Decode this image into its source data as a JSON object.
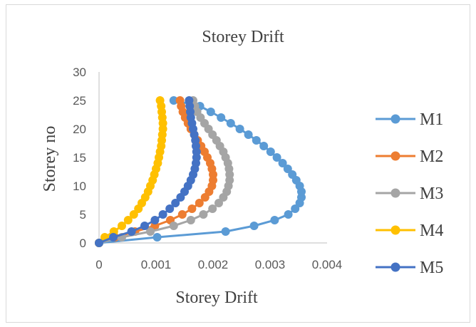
{
  "chart_data": {
    "type": "scatter",
    "title": "Storey Drift",
    "xlabel": "Storey Drift",
    "ylabel": "Storey no",
    "xlim": [
      0,
      0.004
    ],
    "ylim": [
      0,
      30
    ],
    "xticks": [
      "0",
      "0.001",
      "0.002",
      "0.003",
      "0.004"
    ],
    "yticks": [
      "0",
      "5",
      "10",
      "15",
      "20",
      "25",
      "30"
    ],
    "grid": false,
    "legend_position": "right",
    "series": [
      {
        "name": "M1",
        "color": "#5B9BD5",
        "x": [
          0,
          0.00102,
          0.00222,
          0.00272,
          0.00308,
          0.00332,
          0.00344,
          0.00352,
          0.00355,
          0.00355,
          0.00352,
          0.00346,
          0.00339,
          0.00331,
          0.00322,
          0.00312,
          0.00301,
          0.00289,
          0.00276,
          0.00262,
          0.00247,
          0.00231,
          0.00214,
          0.00196,
          0.00177,
          0.00131
        ],
        "y": [
          0,
          1,
          2,
          3,
          4,
          5,
          6,
          7,
          8,
          9,
          10,
          11,
          12,
          13,
          14,
          15,
          16,
          17,
          18,
          19,
          20,
          21,
          22,
          23,
          24,
          25
        ]
      },
      {
        "name": "M2",
        "color": "#ED7D31",
        "x": [
          0,
          0.00028,
          0.00063,
          0.00098,
          0.00125,
          0.00146,
          0.00163,
          0.00176,
          0.00186,
          0.00193,
          0.00198,
          0.002,
          0.002,
          0.00198,
          0.00195,
          0.0019,
          0.00185,
          0.00179,
          0.00173,
          0.00167,
          0.00161,
          0.00156,
          0.00151,
          0.00147,
          0.00144,
          0.00142
        ],
        "y": [
          0,
          1,
          2,
          3,
          4,
          5,
          6,
          7,
          8,
          9,
          10,
          11,
          12,
          13,
          14,
          15,
          16,
          17,
          18,
          19,
          20,
          21,
          22,
          23,
          24,
          25
        ]
      },
      {
        "name": "M3",
        "color": "#A5A5A5",
        "x": [
          0,
          0.0004,
          0.0009,
          0.00131,
          0.00161,
          0.00183,
          0.00199,
          0.0021,
          0.00218,
          0.00224,
          0.00227,
          0.00229,
          0.00229,
          0.00228,
          0.00226,
          0.00222,
          0.00218,
          0.00212,
          0.00206,
          0.00199,
          0.00192,
          0.00185,
          0.00178,
          0.00172,
          0.00168,
          0.00165
        ],
        "y": [
          0,
          1,
          2,
          3,
          4,
          5,
          6,
          7,
          8,
          9,
          10,
          11,
          12,
          13,
          14,
          15,
          16,
          17,
          18,
          19,
          20,
          21,
          22,
          23,
          24,
          25
        ]
      },
      {
        "name": "M4",
        "color": "#FFC000",
        "x": [
          0,
          0.0001,
          0.00026,
          0.0004,
          0.00051,
          0.00061,
          0.00069,
          0.00075,
          0.00081,
          0.00086,
          0.0009,
          0.00094,
          0.00097,
          0.001,
          0.00103,
          0.00105,
          0.00107,
          0.00109,
          0.0011,
          0.00111,
          0.00112,
          0.00112,
          0.00111,
          0.0011,
          0.00109,
          0.00107
        ],
        "y": [
          0,
          1,
          2,
          3,
          4,
          5,
          6,
          7,
          8,
          9,
          10,
          11,
          12,
          13,
          14,
          15,
          16,
          17,
          18,
          19,
          20,
          21,
          22,
          23,
          24,
          25
        ]
      },
      {
        "name": "M5",
        "color": "#4472C4",
        "x": [
          0,
          0.00025,
          0.00057,
          0.0008,
          0.00098,
          0.00112,
          0.00124,
          0.00134,
          0.00143,
          0.0015,
          0.00156,
          0.00161,
          0.00165,
          0.00168,
          0.0017,
          0.00171,
          0.00171,
          0.0017,
          0.00169,
          0.00167,
          0.00165,
          0.00163,
          0.00161,
          0.0016,
          0.00159,
          0.00158
        ],
        "y": [
          0,
          1,
          2,
          3,
          4,
          5,
          6,
          7,
          8,
          9,
          10,
          11,
          12,
          13,
          14,
          15,
          16,
          17,
          18,
          19,
          20,
          21,
          22,
          23,
          24,
          25
        ]
      }
    ]
  }
}
